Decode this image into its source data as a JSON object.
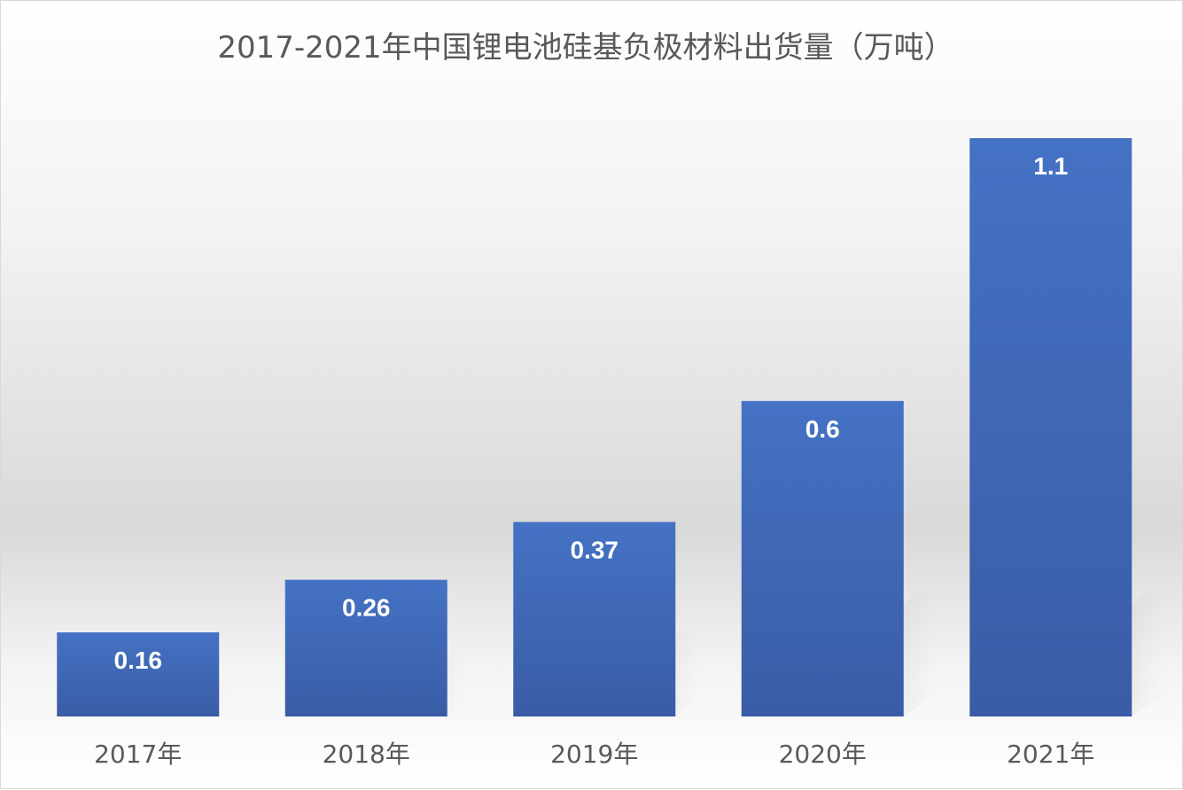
{
  "chart_data": {
    "type": "bar",
    "title": "2017-2021年中国锂电池硅基负极材料出货量（万吨）",
    "categories": [
      "2017年",
      "2018年",
      "2019年",
      "2020年",
      "2021年"
    ],
    "values": [
      0.16,
      0.26,
      0.37,
      0.6,
      1.1
    ],
    "data_labels": [
      "0.16",
      "0.26",
      "0.37",
      "0.6",
      "1.1"
    ],
    "xlabel": "",
    "ylabel": "",
    "ylim": [
      0,
      1.1
    ],
    "grid": false,
    "legend": "none",
    "colors": {
      "bar_top": "#4472c4",
      "bar_bottom": "#3a5ca6",
      "text": "#595959",
      "label": "#ffffff"
    }
  }
}
